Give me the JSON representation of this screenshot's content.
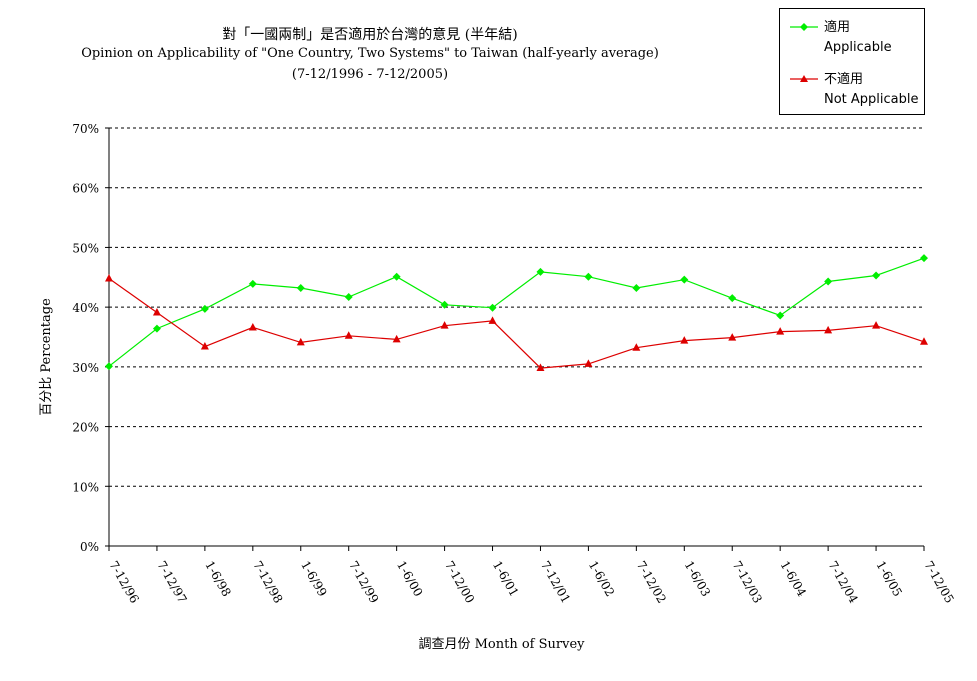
{
  "chart_data": {
    "type": "line",
    "title": "對「一國兩制」是否適用於台灣的意見 (半年結)",
    "subtitle": "Opinion on Applicability of \"One Country, Two Systems\" to Taiwan (half-yearly average)",
    "period": "(7-12/1996 - 7-12/2005)",
    "xlabel": "調查月份 Month of Survey",
    "ylabel": "百分比 Percentage",
    "ylim": [
      0,
      70
    ],
    "yticks": [
      "0%",
      "10%",
      "20%",
      "30%",
      "40%",
      "50%",
      "60%",
      "70%"
    ],
    "ytick_values": [
      0,
      10,
      20,
      30,
      40,
      50,
      60,
      70
    ],
    "grid": "horizontal-dashed",
    "legend_position": "top-right",
    "categories": [
      "7-12/96",
      "7-12/97",
      "1-6/98",
      "7-12/98",
      "1-6/99",
      "7-12/99",
      "1-6/00",
      "7-12/00",
      "1-6/01",
      "7-12/01",
      "1-6/02",
      "7-12/02",
      "1-6/03",
      "7-12/03",
      "1-6/04",
      "7-12/04",
      "1-6/05",
      "7-12/05"
    ],
    "series": [
      {
        "name": "適用",
        "name_en": "Applicable",
        "color": "#00ee00",
        "marker": "diamond",
        "values": [
          30.1,
          36.4,
          39.7,
          43.9,
          43.2,
          41.7,
          45.1,
          40.4,
          39.9,
          45.9,
          45.1,
          43.2,
          44.6,
          41.5,
          38.6,
          44.3,
          45.3,
          48.2
        ]
      },
      {
        "name": "不適用",
        "name_en": "Not Applicable",
        "color": "#dd0000",
        "marker": "triangle",
        "values": [
          44.8,
          39.1,
          33.4,
          36.6,
          34.1,
          35.2,
          34.6,
          36.9,
          37.7,
          29.8,
          30.5,
          33.2,
          34.4,
          34.9,
          35.9,
          36.1,
          36.9,
          34.2
        ]
      }
    ]
  }
}
